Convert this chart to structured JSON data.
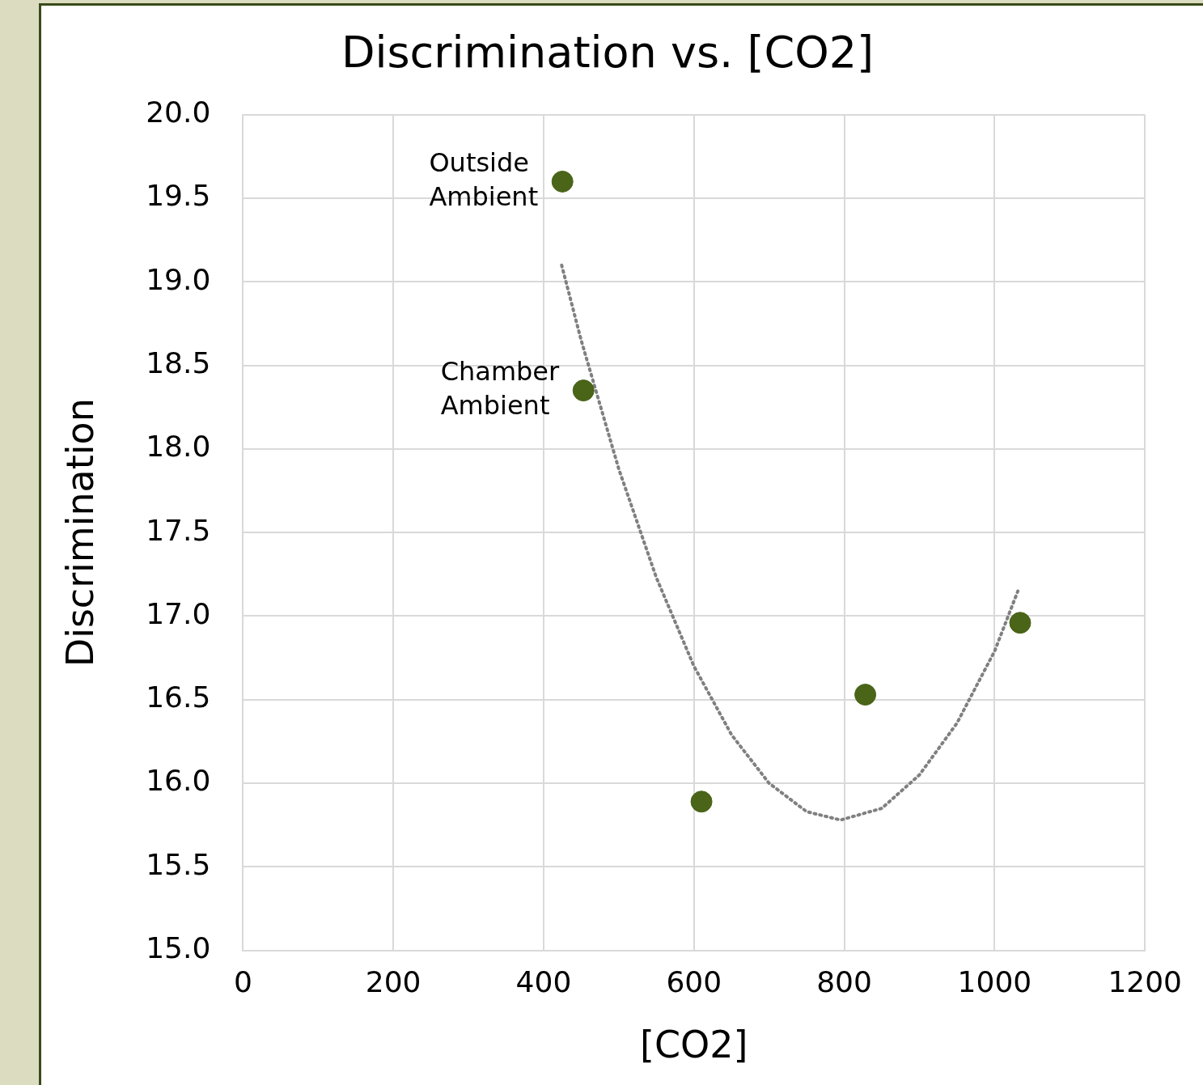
{
  "chart_data": {
    "type": "scatter",
    "title": "Discrimination vs. [CO2]",
    "xlabel": "[CO2]",
    "ylabel": "Discrimination",
    "series": [
      {
        "type": "scatter",
        "color": "#4a6418",
        "x": [
          425,
          453,
          610,
          828,
          1034
        ],
        "values": [
          19.6,
          18.35,
          15.89,
          16.53,
          16.96
        ]
      },
      {
        "type": "line",
        "color": "#808080",
        "line_style": "dotted",
        "marker": "none",
        "x": [
          424,
          450,
          500,
          550,
          600,
          650,
          700,
          750,
          795,
          850,
          900,
          950,
          1000,
          1031
        ],
        "values": [
          19.1,
          18.65,
          17.88,
          17.23,
          16.7,
          16.29,
          16.0,
          15.83,
          15.78,
          15.85,
          16.05,
          16.36,
          16.79,
          17.15
        ]
      }
    ],
    "annotations": [
      {
        "text": "Outside Ambient",
        "x": 425,
        "y": 19.6
      },
      {
        "text": "Chamber Ambient",
        "x": 453,
        "y": 18.35
      }
    ],
    "xlim": [
      0,
      1200
    ],
    "xticks": [
      0,
      200,
      400,
      600,
      800,
      1000,
      1200
    ],
    "ylim": [
      15,
      20
    ],
    "yticks": [
      {
        "value": 15,
        "label": "15.0"
      },
      {
        "value": 15.5,
        "label": "15.5"
      },
      {
        "value": 16,
        "label": "16.0"
      },
      {
        "value": 16.5,
        "label": "16.5"
      },
      {
        "value": 17,
        "label": "17.0"
      },
      {
        "value": 17.5,
        "label": "17.5"
      },
      {
        "value": 18,
        "label": "18.0"
      },
      {
        "value": 18.5,
        "label": "18.5"
      },
      {
        "value": 19,
        "label": "19.0"
      },
      {
        "value": 19.5,
        "label": "19.5"
      },
      {
        "value": 20,
        "label": "20.0"
      }
    ],
    "grid": true,
    "legend": false,
    "marker": "circle"
  }
}
